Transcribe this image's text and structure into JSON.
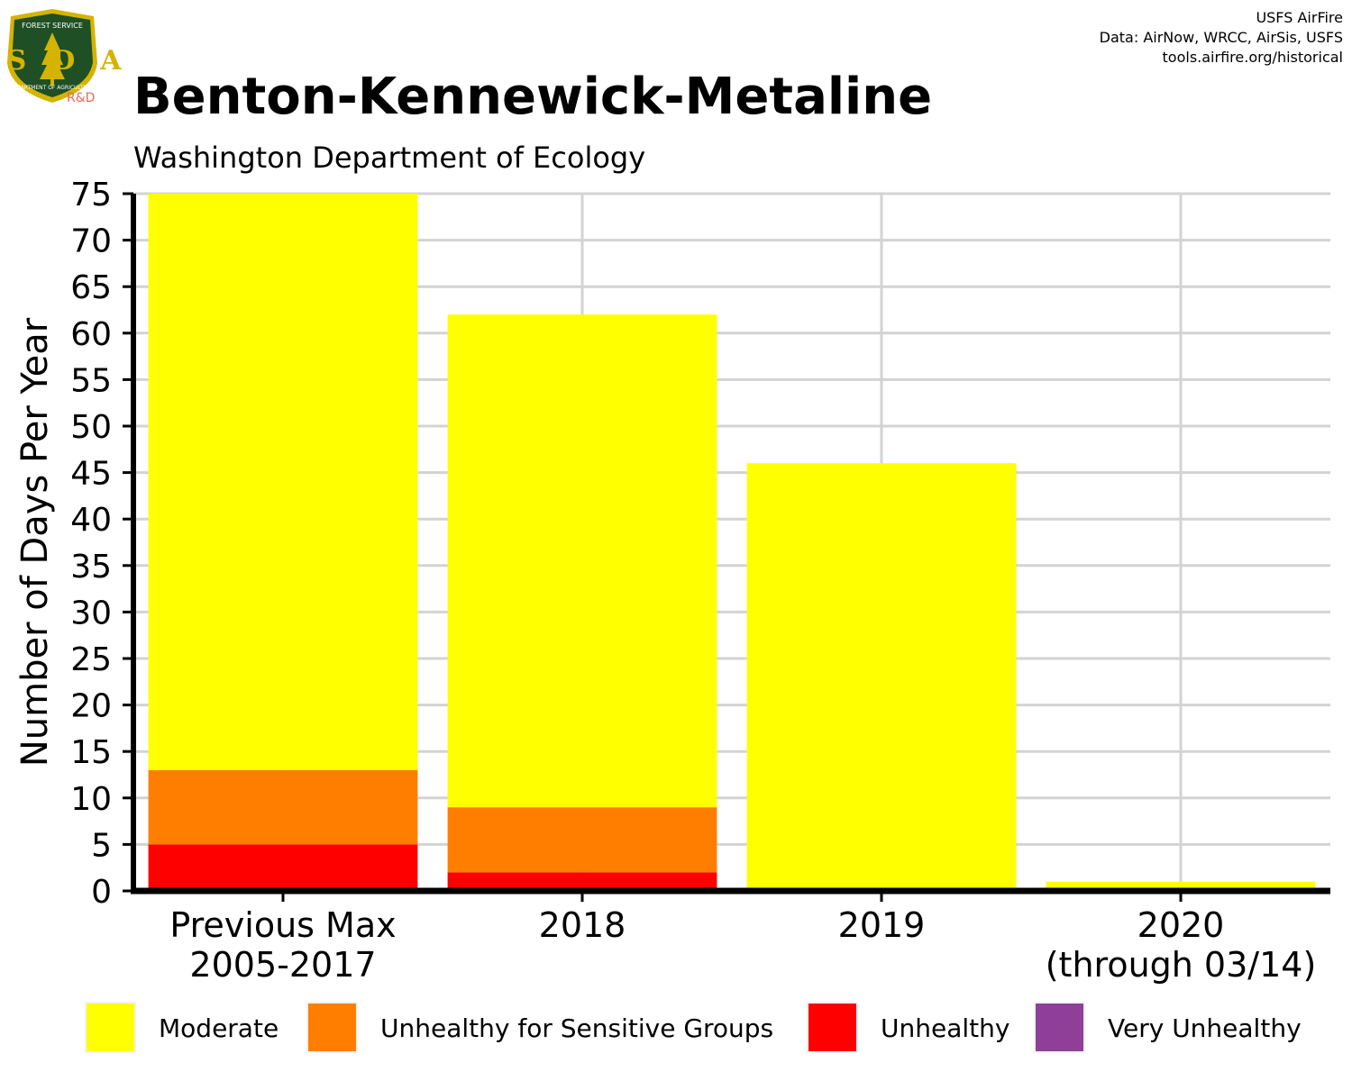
{
  "logo": {
    "agency_text": "FOREST SERVICE",
    "letters": "USDA",
    "department_text": "DEPARTMENT OF AGRICULTURE",
    "tag": "R&D",
    "colors": {
      "shield": "#1f4f24",
      "rim": "#d4b400",
      "tag": "#e8685a"
    }
  },
  "credit": {
    "line1": "USFS AirFire",
    "line2": "Data: AirNow, WRCC, AirSis, USFS",
    "line3": "tools.airfire.org/historical"
  },
  "chart_data": {
    "type": "bar",
    "stacked": true,
    "title": "Benton-Kennewick-Metaline",
    "subtitle": "Washington Department of Ecology",
    "ylabel": "Number of Days Per Year",
    "xlabel": "",
    "ylim": [
      0,
      75
    ],
    "yticks": [
      0,
      5,
      10,
      15,
      20,
      25,
      30,
      35,
      40,
      45,
      50,
      55,
      60,
      65,
      70,
      75
    ],
    "grid": true,
    "legend_position": "bottom",
    "categories": [
      {
        "line1": "Previous Max",
        "line2": "2005-2017"
      },
      {
        "line1": "2018",
        "line2": ""
      },
      {
        "line1": "2019",
        "line2": ""
      },
      {
        "line1": "2020",
        "line2": "(through 03/14)"
      }
    ],
    "series": [
      {
        "name": "Unhealthy",
        "color": "#ff0000",
        "values": [
          5,
          2,
          0,
          0
        ]
      },
      {
        "name": "Unhealthy for Sensitive Groups",
        "color": "#ff7e00",
        "values": [
          8,
          7,
          0,
          0
        ]
      },
      {
        "name": "Moderate",
        "color": "#ffff00",
        "values": [
          62,
          53,
          46,
          1
        ]
      },
      {
        "name": "Very Unhealthy",
        "color": "#8f3f97",
        "values": [
          0,
          0,
          0,
          0
        ]
      }
    ],
    "legend": [
      {
        "name": "Moderate",
        "color": "#ffff00"
      },
      {
        "name": "Unhealthy for Sensitive Groups",
        "color": "#ff7e00"
      },
      {
        "name": "Unhealthy",
        "color": "#ff0000"
      },
      {
        "name": "Very Unhealthy",
        "color": "#8f3f97"
      }
    ]
  }
}
